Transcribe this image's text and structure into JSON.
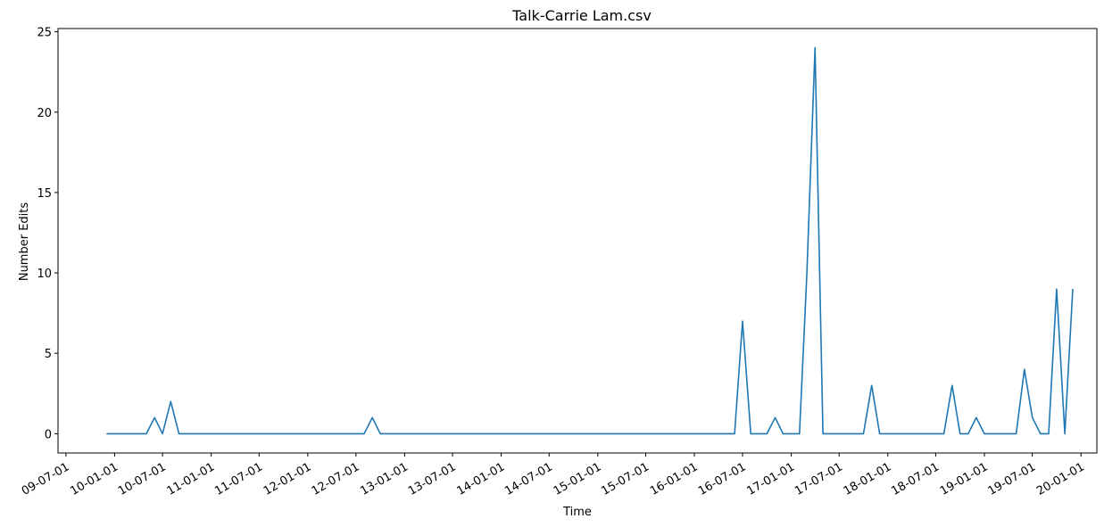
{
  "chart_data": {
    "type": "line",
    "title": "Talk-Carrie Lam.csv",
    "xlabel": "Time",
    "ylabel": "Number Edits",
    "grid": false,
    "legend": "none",
    "line_color": "#1f77b4",
    "xlim": [
      "2009-06-01",
      "2020-03-01"
    ],
    "ylim": [
      -1.2,
      25.2
    ],
    "x_ticks": [
      "2009-07-01",
      "2010-01-01",
      "2010-07-01",
      "2011-01-01",
      "2011-07-01",
      "2012-01-01",
      "2012-07-01",
      "2013-01-01",
      "2013-07-01",
      "2014-01-01",
      "2014-07-01",
      "2015-01-01",
      "2015-07-01",
      "2016-01-01",
      "2016-07-01",
      "2017-01-01",
      "2017-07-01",
      "2018-01-01",
      "2018-07-01",
      "2019-01-01",
      "2019-07-01",
      "2020-01-01"
    ],
    "x_tick_labels": [
      "09-07-01",
      "10-01-01",
      "10-07-01",
      "11-01-01",
      "11-07-01",
      "12-01-01",
      "12-07-01",
      "13-01-01",
      "13-07-01",
      "14-01-01",
      "14-07-01",
      "15-01-01",
      "15-07-01",
      "16-01-01",
      "16-07-01",
      "17-01-01",
      "17-07-01",
      "18-01-01",
      "18-07-01",
      "19-01-01",
      "19-07-01",
      "20-01-01"
    ],
    "y_ticks": [
      0,
      5,
      10,
      15,
      20,
      25
    ],
    "y_tick_labels": [
      "0",
      "5",
      "10",
      "15",
      "20",
      "25"
    ],
    "series": [
      {
        "x": [
          "2009-12-01",
          "2010-01-01",
          "2010-02-01",
          "2010-03-01",
          "2010-04-01",
          "2010-05-01",
          "2010-06-01",
          "2010-07-01",
          "2010-08-01",
          "2010-09-01",
          "2010-10-01",
          "2010-11-01",
          "2010-12-01",
          "2011-01-01",
          "2011-02-01",
          "2011-03-01",
          "2011-04-01",
          "2011-05-01",
          "2011-06-01",
          "2011-07-01",
          "2011-08-01",
          "2011-09-01",
          "2011-10-01",
          "2011-11-01",
          "2011-12-01",
          "2012-01-01",
          "2012-02-01",
          "2012-03-01",
          "2012-04-01",
          "2012-05-01",
          "2012-06-01",
          "2012-07-01",
          "2012-08-01",
          "2012-09-01",
          "2012-10-01",
          "2012-11-01",
          "2012-12-01",
          "2013-01-01",
          "2013-02-01",
          "2013-03-01",
          "2013-04-01",
          "2013-05-01",
          "2013-06-01",
          "2013-07-01",
          "2013-08-01",
          "2013-09-01",
          "2013-10-01",
          "2013-11-01",
          "2013-12-01",
          "2014-01-01",
          "2014-02-01",
          "2014-03-01",
          "2014-04-01",
          "2014-05-01",
          "2014-06-01",
          "2014-07-01",
          "2014-08-01",
          "2014-09-01",
          "2014-10-01",
          "2014-11-01",
          "2014-12-01",
          "2015-01-01",
          "2015-02-01",
          "2015-03-01",
          "2015-04-01",
          "2015-05-01",
          "2015-06-01",
          "2015-07-01",
          "2015-08-01",
          "2015-09-01",
          "2015-10-01",
          "2015-11-01",
          "2015-12-01",
          "2016-01-01",
          "2016-02-01",
          "2016-03-01",
          "2016-04-01",
          "2016-05-01",
          "2016-06-01",
          "2016-07-01",
          "2016-08-01",
          "2016-09-01",
          "2016-10-01",
          "2016-11-01",
          "2016-12-01",
          "2017-01-01",
          "2017-02-01",
          "2017-03-01",
          "2017-04-01",
          "2017-05-01",
          "2017-06-01",
          "2017-07-01",
          "2017-08-01",
          "2017-09-01",
          "2017-10-01",
          "2017-11-01",
          "2017-12-01",
          "2018-01-01",
          "2018-02-01",
          "2018-03-01",
          "2018-04-01",
          "2018-05-01",
          "2018-06-01",
          "2018-07-01",
          "2018-08-01",
          "2018-09-01",
          "2018-10-01",
          "2018-11-01",
          "2018-12-01",
          "2019-01-01",
          "2019-02-01",
          "2019-03-01",
          "2019-04-01",
          "2019-05-01",
          "2019-06-01",
          "2019-07-01",
          "2019-08-01",
          "2019-09-01",
          "2019-10-01",
          "2019-11-01",
          "2019-12-01"
        ],
        "values": [
          0,
          0,
          0,
          0,
          0,
          0,
          1,
          0,
          2,
          0,
          0,
          0,
          0,
          0,
          0,
          0,
          0,
          0,
          0,
          0,
          0,
          0,
          0,
          0,
          0,
          0,
          0,
          0,
          0,
          0,
          0,
          0,
          0,
          1,
          0,
          0,
          0,
          0,
          0,
          0,
          0,
          0,
          0,
          0,
          0,
          0,
          0,
          0,
          0,
          0,
          0,
          0,
          0,
          0,
          0,
          0,
          0,
          0,
          0,
          0,
          0,
          0,
          0,
          0,
          0,
          0,
          0,
          0,
          0,
          0,
          0,
          0,
          0,
          0,
          0,
          0,
          0,
          0,
          0,
          7,
          0,
          0,
          0,
          1,
          0,
          0,
          0,
          10,
          24,
          0,
          0,
          0,
          0,
          0,
          0,
          3,
          0,
          0,
          0,
          0,
          0,
          0,
          0,
          0,
          0,
          3,
          0,
          0,
          1,
          0,
          0,
          0,
          0,
          0,
          4,
          1,
          0,
          0,
          9,
          0,
          9
        ]
      }
    ]
  }
}
